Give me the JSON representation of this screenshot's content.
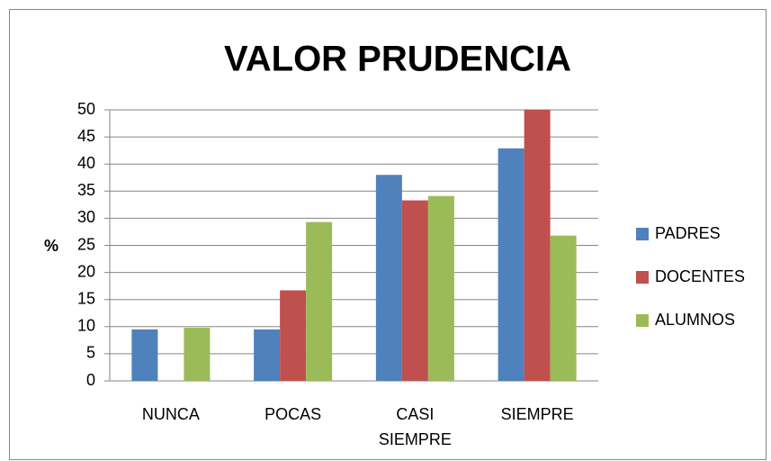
{
  "chart_data": {
    "type": "bar",
    "title": "VALOR PRUDENCIA",
    "y_label": "%",
    "categories": [
      "NUNCA",
      "POCAS",
      "CASI SIEMPRE",
      "SIEMPRE"
    ],
    "series": [
      {
        "name": "PADRES",
        "color": "#4f81bd",
        "values": [
          9.5,
          9.5,
          38,
          42.9
        ]
      },
      {
        "name": "DOCENTES",
        "color": "#c0504d",
        "values": [
          0,
          16.7,
          33.3,
          50
        ]
      },
      {
        "name": "ALUMNOS",
        "color": "#9bbb59",
        "values": [
          9.8,
          29.3,
          34.1,
          26.8
        ]
      }
    ],
    "ylim": [
      0,
      50
    ],
    "yticks": [
      0,
      5,
      10,
      15,
      20,
      25,
      30,
      35,
      40,
      45,
      50
    ],
    "grid": true,
    "legend": "right"
  }
}
